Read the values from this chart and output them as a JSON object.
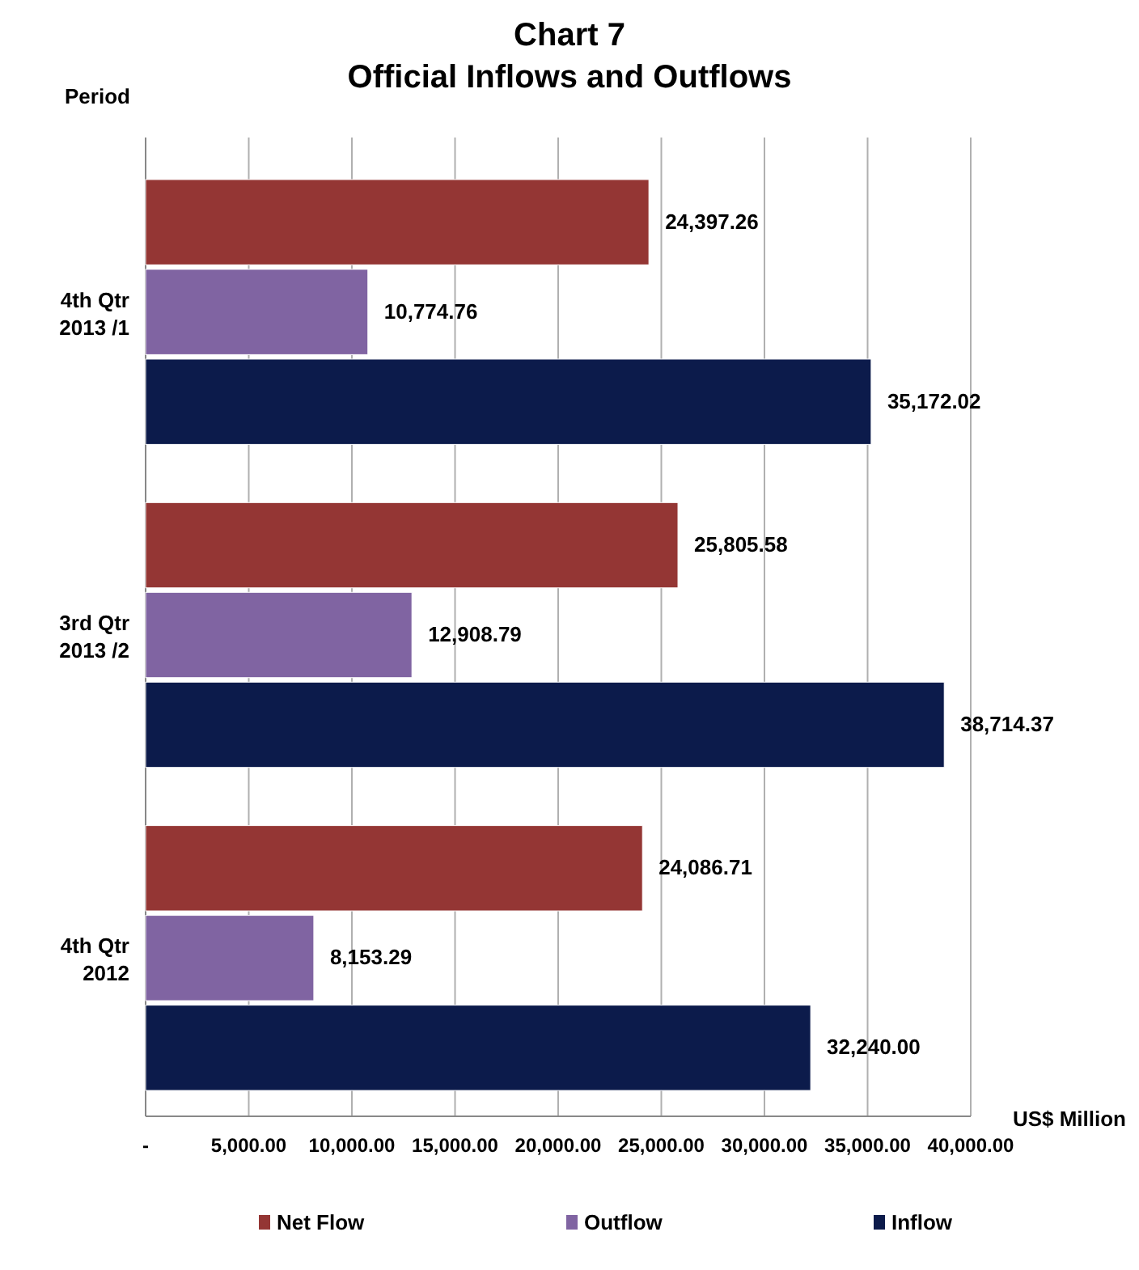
{
  "chart_data": {
    "type": "bar",
    "orientation": "horizontal",
    "title": "Chart 7",
    "subtitle": "Official Inflows and Outflows",
    "ylabel": "Period",
    "xlabel": "US$ Million",
    "categories": [
      "4th Qtr 2013 /1",
      "3rd Qtr 2013 /2",
      "4th Qtr 2012"
    ],
    "series": [
      {
        "name": "Net Flow",
        "color": "#943634",
        "values": [
          24397.26,
          25805.58,
          24086.71
        ],
        "value_labels": [
          "24,397.26",
          "25,805.58",
          "24,086.71"
        ]
      },
      {
        "name": "Outflow",
        "color": "#8064a2",
        "values": [
          10774.76,
          12908.79,
          8153.29
        ],
        "value_labels": [
          "10,774.76",
          "12,908.79",
          "8,153.29"
        ]
      },
      {
        "name": "Inflow",
        "color": "#0c1b4b",
        "values": [
          35172.02,
          38714.37,
          32240.0
        ],
        "value_labels": [
          "35,172.02",
          "38,714.37",
          "32,240.00"
        ]
      }
    ],
    "xlim": [
      0,
      40000
    ],
    "xticks": [
      {
        "value": 0,
        "label": "-"
      },
      {
        "value": 5000,
        "label": "5,000.00"
      },
      {
        "value": 10000,
        "label": "10,000.00"
      },
      {
        "value": 15000,
        "label": "15,000.00"
      },
      {
        "value": 20000,
        "label": "20,000.00"
      },
      {
        "value": 25000,
        "label": "25,000.00"
      },
      {
        "value": 30000,
        "label": "30,000.00"
      },
      {
        "value": 35000,
        "label": "35,000.00"
      },
      {
        "value": 40000,
        "label": "40,000.00"
      }
    ],
    "grid": "x",
    "legend": "bottom"
  }
}
